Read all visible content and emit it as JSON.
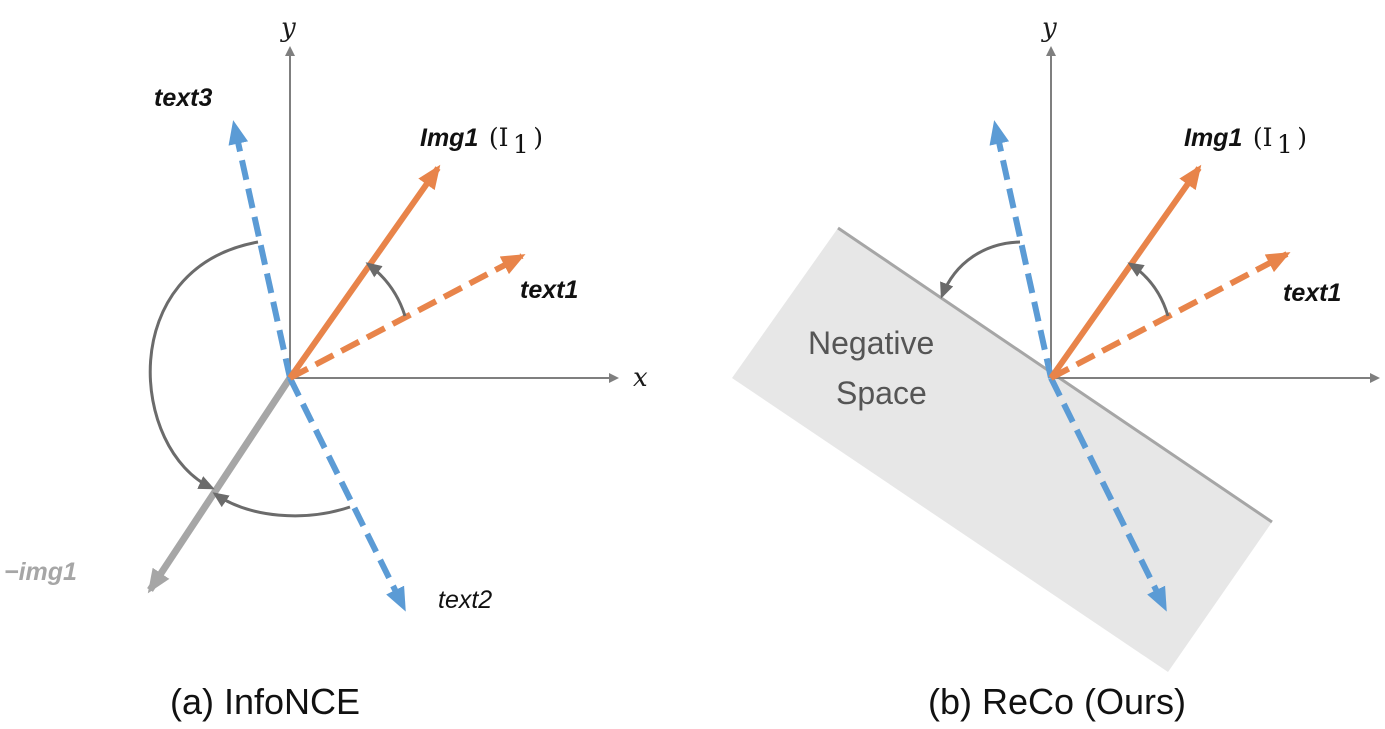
{
  "colors": {
    "axis": "#7f7f7f",
    "image_vector": "#e8844a",
    "text_vector_blue": "#5b9bd5",
    "negative_image": "#a6a6a6",
    "angle_arc": "#6b6b6b",
    "negative_space_fill": "#e7e7e7"
  },
  "panel_a": {
    "axis_y_label": "y",
    "axis_x_label": "x",
    "img1_label": "Img1",
    "img1_math": "(I",
    "img1_sub": "1",
    "img1_close": ")",
    "text1_label": "text1",
    "text2_label": "text2",
    "text3_label": "text3",
    "neg_img_label": "−img1",
    "caption": "(a) InfoNCE"
  },
  "panel_b": {
    "axis_y_label": "y",
    "img1_label": "Img1",
    "img1_math": "(I",
    "img1_sub": "1",
    "img1_close": ")",
    "text1_label": "text1",
    "region_label_line1": "Negative",
    "region_label_line2": "Space",
    "caption": "(b) ReCo (Ours)"
  }
}
